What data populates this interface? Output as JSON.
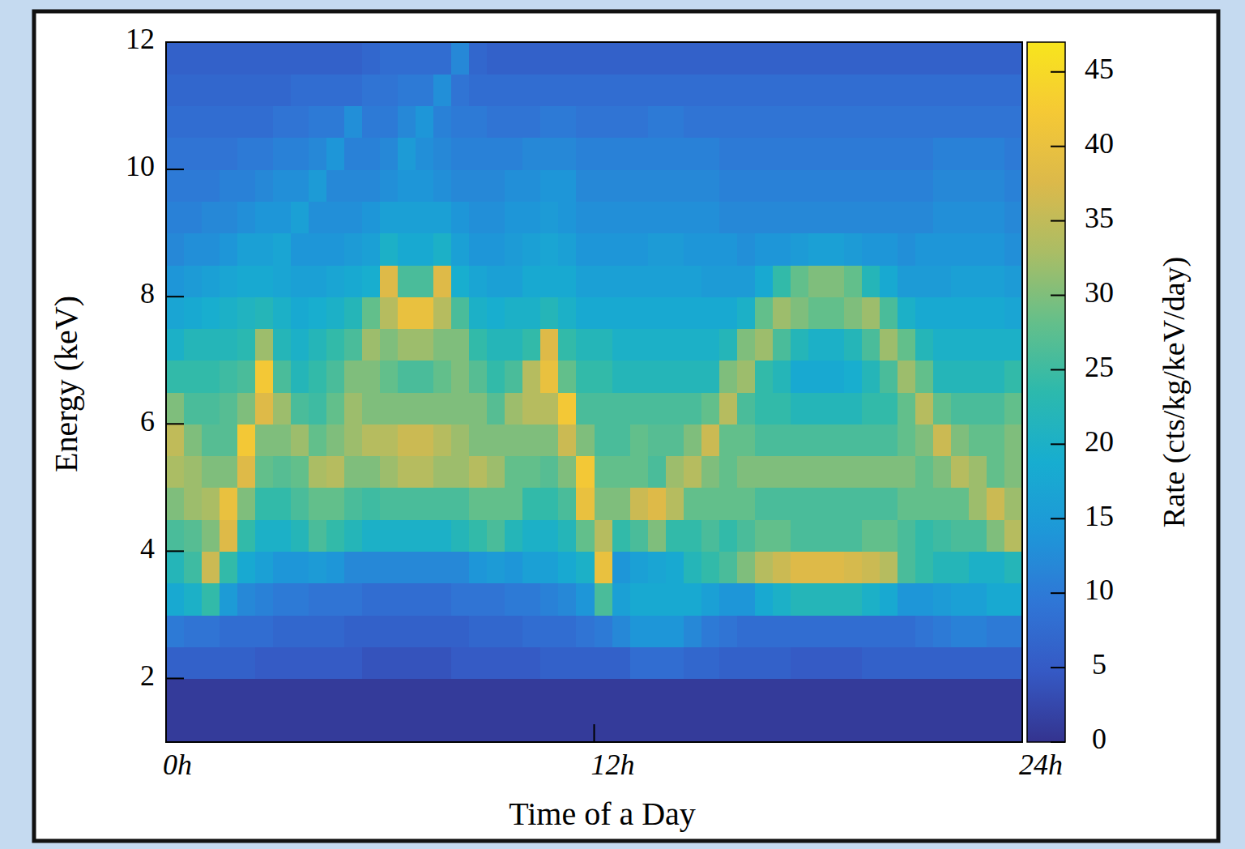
{
  "chart_data": {
    "type": "heatmap",
    "xlabel": "Time of a Day",
    "ylabel": "Energy (keV)",
    "xlim": [
      0,
      24
    ],
    "ylim": [
      1,
      12
    ],
    "xticks": [
      {
        "value": 0,
        "label": "0h"
      },
      {
        "value": 12,
        "label": "12h"
      },
      {
        "value": 24,
        "label": "24h"
      }
    ],
    "yticks": [
      2,
      4,
      6,
      8,
      10,
      12
    ],
    "grid": false,
    "x": [
      0.25,
      0.75,
      1.25,
      1.75,
      2.25,
      2.75,
      3.25,
      3.75,
      4.25,
      4.75,
      5.25,
      5.75,
      6.25,
      6.75,
      7.25,
      7.75,
      8.25,
      8.75,
      9.25,
      9.75,
      10.25,
      10.75,
      11.25,
      11.75,
      12.25,
      12.75,
      13.25,
      13.75,
      14.25,
      14.75,
      15.25,
      15.75,
      16.25,
      16.75,
      17.25,
      17.75,
      18.25,
      18.75,
      19.25,
      19.75,
      20.25,
      20.75,
      21.25,
      21.75,
      22.25,
      22.75,
      23.25,
      23.75
    ],
    "y": [
      1.25,
      1.75,
      2.25,
      2.75,
      3.25,
      3.75,
      4.25,
      4.75,
      5.25,
      5.75,
      6.25,
      6.75,
      7.25,
      7.75,
      8.25,
      8.75,
      9.25,
      9.75,
      10.25,
      10.75,
      11.25,
      11.75
    ],
    "values": [
      [
        1,
        1,
        6,
        10,
        18,
        22,
        26,
        30,
        33,
        35,
        30,
        24,
        20,
        17,
        14,
        12,
        11,
        10,
        9,
        8,
        7,
        6
      ],
      [
        1,
        1,
        6,
        9,
        20,
        25,
        27,
        32,
        32,
        30,
        26,
        24,
        22,
        18,
        15,
        13,
        11,
        10,
        9,
        8,
        7,
        6
      ],
      [
        1,
        1,
        6,
        9,
        24,
        36,
        30,
        33,
        30,
        27,
        26,
        24,
        22,
        19,
        16,
        13,
        12,
        10,
        9,
        8,
        7,
        6
      ],
      [
        1,
        1,
        6,
        8,
        15,
        24,
        38,
        40,
        30,
        27,
        27,
        25,
        22,
        20,
        17,
        14,
        12,
        11,
        9,
        8,
        7,
        6
      ],
      [
        1,
        1,
        6,
        8,
        12,
        18,
        24,
        30,
        38,
        42,
        30,
        26,
        23,
        21,
        18,
        16,
        13,
        11,
        10,
        8,
        7,
        6
      ],
      [
        1,
        1,
        5,
        8,
        11,
        16,
        20,
        24,
        28,
        30,
        38,
        42,
        32,
        22,
        18,
        16,
        14,
        12,
        10,
        8,
        7,
        6
      ],
      [
        1,
        1,
        5,
        7,
        10,
        14,
        20,
        24,
        27,
        30,
        32,
        26,
        22,
        20,
        17,
        17,
        14,
        13,
        11,
        9,
        7,
        6
      ],
      [
        1,
        1,
        5,
        7,
        10,
        14,
        22,
        26,
        28,
        32,
        26,
        22,
        20,
        18,
        16,
        14,
        16,
        13,
        11,
        9,
        8,
        6
      ],
      [
        1,
        1,
        5,
        7,
        9,
        15,
        26,
        28,
        33,
        28,
        25,
        24,
        22,
        19,
        16,
        14,
        13,
        15,
        12,
        10,
        8,
        6
      ],
      [
        1,
        1,
        5,
        7,
        9,
        14,
        24,
        28,
        34,
        30,
        28,
        26,
        24,
        20,
        17,
        14,
        13,
        12,
        14,
        10,
        8,
        6
      ],
      [
        1,
        1,
        5,
        6,
        9,
        12,
        22,
        26,
        30,
        32,
        32,
        30,
        26,
        22,
        18,
        15,
        13,
        12,
        11,
        13,
        8,
        6
      ],
      [
        1,
        1,
        4,
        6,
        8,
        12,
        20,
        25,
        30,
        34,
        30,
        30,
        32,
        28,
        19,
        16,
        14,
        12,
        11,
        10,
        9,
        7
      ],
      [
        1,
        1,
        4,
        6,
        8,
        12,
        20,
        26,
        32,
        34,
        30,
        28,
        30,
        34,
        38,
        20,
        16,
        13,
        12,
        10,
        9,
        8
      ],
      [
        1,
        1,
        4,
        6,
        8,
        12,
        20,
        26,
        34,
        36,
        30,
        26,
        32,
        40,
        26,
        18,
        16,
        14,
        15,
        12,
        10,
        8
      ],
      [
        1,
        1,
        4,
        6,
        8,
        12,
        20,
        26,
        34,
        36,
        30,
        26,
        32,
        40,
        26,
        18,
        16,
        14,
        13,
        14,
        10,
        8
      ],
      [
        1,
        1,
        4,
        6,
        8,
        12,
        20,
        26,
        32,
        34,
        30,
        28,
        30,
        34,
        38,
        20,
        16,
        13,
        12,
        11,
        13,
        8
      ],
      [
        1,
        1,
        5,
        6,
        9,
        12,
        22,
        26,
        32,
        32,
        30,
        30,
        30,
        26,
        19,
        16,
        14,
        12,
        11,
        10,
        9,
        12
      ],
      [
        1,
        1,
        5,
        7,
        9,
        14,
        24,
        28,
        34,
        30,
        30,
        27,
        24,
        20,
        17,
        14,
        13,
        12,
        11,
        10,
        8,
        7
      ],
      [
        1,
        1,
        5,
        7,
        9,
        15,
        26,
        28,
        32,
        30,
        27,
        24,
        22,
        19,
        16,
        14,
        13,
        12,
        11,
        9,
        8,
        6
      ],
      [
        1,
        1,
        5,
        7,
        10,
        14,
        22,
        28,
        28,
        30,
        32,
        26,
        22,
        20,
        16,
        15,
        14,
        13,
        11,
        9,
        8,
        6
      ],
      [
        1,
        1,
        5,
        8,
        10,
        16,
        20,
        24,
        28,
        30,
        34,
        34,
        24,
        20,
        18,
        16,
        14,
        13,
        12,
        9,
        8,
        6
      ],
      [
        1,
        1,
        6,
        8,
        11,
        16,
        20,
        24,
        27,
        30,
        34,
        40,
        38,
        22,
        18,
        17,
        15,
        14,
        12,
        10,
        8,
        6
      ],
      [
        1,
        1,
        6,
        8,
        12,
        18,
        22,
        26,
        30,
        36,
        42,
        28,
        24,
        20,
        18,
        16,
        14,
        14,
        12,
        10,
        8,
        6
      ],
      [
        1,
        1,
        6,
        9,
        14,
        20,
        28,
        40,
        42,
        30,
        26,
        24,
        22,
        18,
        16,
        14,
        13,
        12,
        11,
        9,
        8,
        6
      ],
      [
        1,
        1,
        6,
        10,
        26,
        40,
        34,
        30,
        28,
        26,
        26,
        24,
        22,
        18,
        16,
        14,
        13,
        12,
        11,
        9,
        8,
        6
      ],
      [
        1,
        1,
        6,
        12,
        16,
        14,
        24,
        30,
        28,
        26,
        26,
        22,
        20,
        18,
        16,
        14,
        13,
        12,
        11,
        9,
        8,
        6
      ],
      [
        1,
        1,
        8,
        14,
        18,
        16,
        26,
        36,
        28,
        28,
        26,
        22,
        20,
        18,
        16,
        14,
        13,
        12,
        11,
        9,
        8,
        6
      ],
      [
        1,
        1,
        8,
        14,
        18,
        17,
        30,
        38,
        26,
        27,
        26,
        22,
        20,
        18,
        16,
        15,
        13,
        12,
        11,
        10,
        8,
        6
      ],
      [
        1,
        1,
        8,
        14,
        18,
        18,
        24,
        34,
        32,
        27,
        26,
        22,
        20,
        18,
        16,
        15,
        13,
        12,
        11,
        10,
        8,
        6
      ],
      [
        1,
        1,
        7,
        12,
        18,
        22,
        24,
        28,
        34,
        30,
        26,
        22,
        20,
        18,
        16,
        14,
        13,
        12,
        11,
        9,
        8,
        6
      ],
      [
        1,
        1,
        7,
        10,
        16,
        24,
        26,
        28,
        30,
        36,
        28,
        22,
        20,
        18,
        15,
        14,
        13,
        12,
        11,
        9,
        8,
        6
      ],
      [
        1,
        1,
        6,
        9,
        14,
        26,
        24,
        28,
        28,
        28,
        34,
        30,
        22,
        18,
        15,
        14,
        12,
        11,
        10,
        9,
        8,
        6
      ],
      [
        1,
        1,
        6,
        8,
        14,
        30,
        26,
        28,
        30,
        28,
        26,
        32,
        30,
        20,
        15,
        13,
        12,
        11,
        10,
        9,
        8,
        6
      ],
      [
        1,
        1,
        6,
        8,
        18,
        34,
        28,
        26,
        30,
        26,
        24,
        24,
        32,
        28,
        18,
        14,
        12,
        11,
        10,
        9,
        8,
        6
      ],
      [
        1,
        1,
        6,
        8,
        20,
        36,
        28,
        26,
        30,
        26,
        24,
        22,
        26,
        32,
        24,
        14,
        12,
        11,
        10,
        9,
        8,
        6
      ],
      [
        1,
        1,
        5,
        8,
        22,
        38,
        26,
        26,
        30,
        26,
        22,
        18,
        22,
        30,
        28,
        15,
        12,
        11,
        10,
        9,
        8,
        6
      ],
      [
        1,
        1,
        5,
        8,
        22,
        38,
        26,
        26,
        30,
        26,
        22,
        18,
        20,
        28,
        30,
        16,
        12,
        11,
        10,
        9,
        8,
        6
      ],
      [
        1,
        1,
        5,
        8,
        22,
        38,
        26,
        26,
        30,
        26,
        22,
        18,
        20,
        28,
        30,
        16,
        12,
        11,
        10,
        9,
        8,
        6
      ],
      [
        1,
        1,
        5,
        8,
        22,
        37,
        26,
        26,
        30,
        26,
        22,
        19,
        22,
        30,
        28,
        15,
        12,
        11,
        10,
        9,
        8,
        6
      ],
      [
        1,
        1,
        6,
        8,
        20,
        36,
        28,
        26,
        30,
        26,
        24,
        22,
        26,
        32,
        22,
        14,
        12,
        11,
        10,
        9,
        8,
        6
      ],
      [
        1,
        1,
        6,
        8,
        18,
        34,
        28,
        26,
        30,
        26,
        24,
        26,
        32,
        26,
        18,
        14,
        12,
        11,
        10,
        9,
        8,
        6
      ],
      [
        1,
        1,
        6,
        8,
        14,
        26,
        26,
        28,
        30,
        28,
        28,
        32,
        28,
        20,
        15,
        13,
        12,
        11,
        10,
        9,
        8,
        6
      ],
      [
        1,
        1,
        6,
        9,
        14,
        24,
        24,
        28,
        28,
        30,
        34,
        28,
        22,
        18,
        15,
        14,
        12,
        11,
        10,
        9,
        8,
        6
      ],
      [
        1,
        1,
        6,
        10,
        15,
        22,
        25,
        28,
        30,
        36,
        28,
        22,
        20,
        18,
        15,
        14,
        13,
        12,
        11,
        9,
        8,
        6
      ],
      [
        1,
        1,
        6,
        11,
        16,
        22,
        26,
        28,
        34,
        30,
        26,
        22,
        20,
        18,
        16,
        14,
        13,
        12,
        11,
        9,
        8,
        6
      ],
      [
        1,
        1,
        6,
        11,
        16,
        20,
        26,
        32,
        32,
        28,
        26,
        22,
        20,
        18,
        16,
        14,
        13,
        12,
        11,
        9,
        8,
        6
      ],
      [
        1,
        1,
        6,
        10,
        18,
        20,
        30,
        36,
        28,
        28,
        26,
        22,
        20,
        18,
        16,
        14,
        13,
        12,
        11,
        9,
        8,
        6
      ],
      [
        1,
        1,
        6,
        10,
        18,
        22,
        34,
        32,
        30,
        30,
        28,
        24,
        20,
        17,
        15,
        13,
        12,
        11,
        10,
        9,
        8,
        6
      ]
    ],
    "colorbar": {
      "label": "Rate (cts/kg/keV/day)",
      "range": [
        0,
        47
      ],
      "ticks": [
        0,
        5,
        10,
        15,
        20,
        25,
        30,
        35,
        40,
        45
      ]
    }
  }
}
